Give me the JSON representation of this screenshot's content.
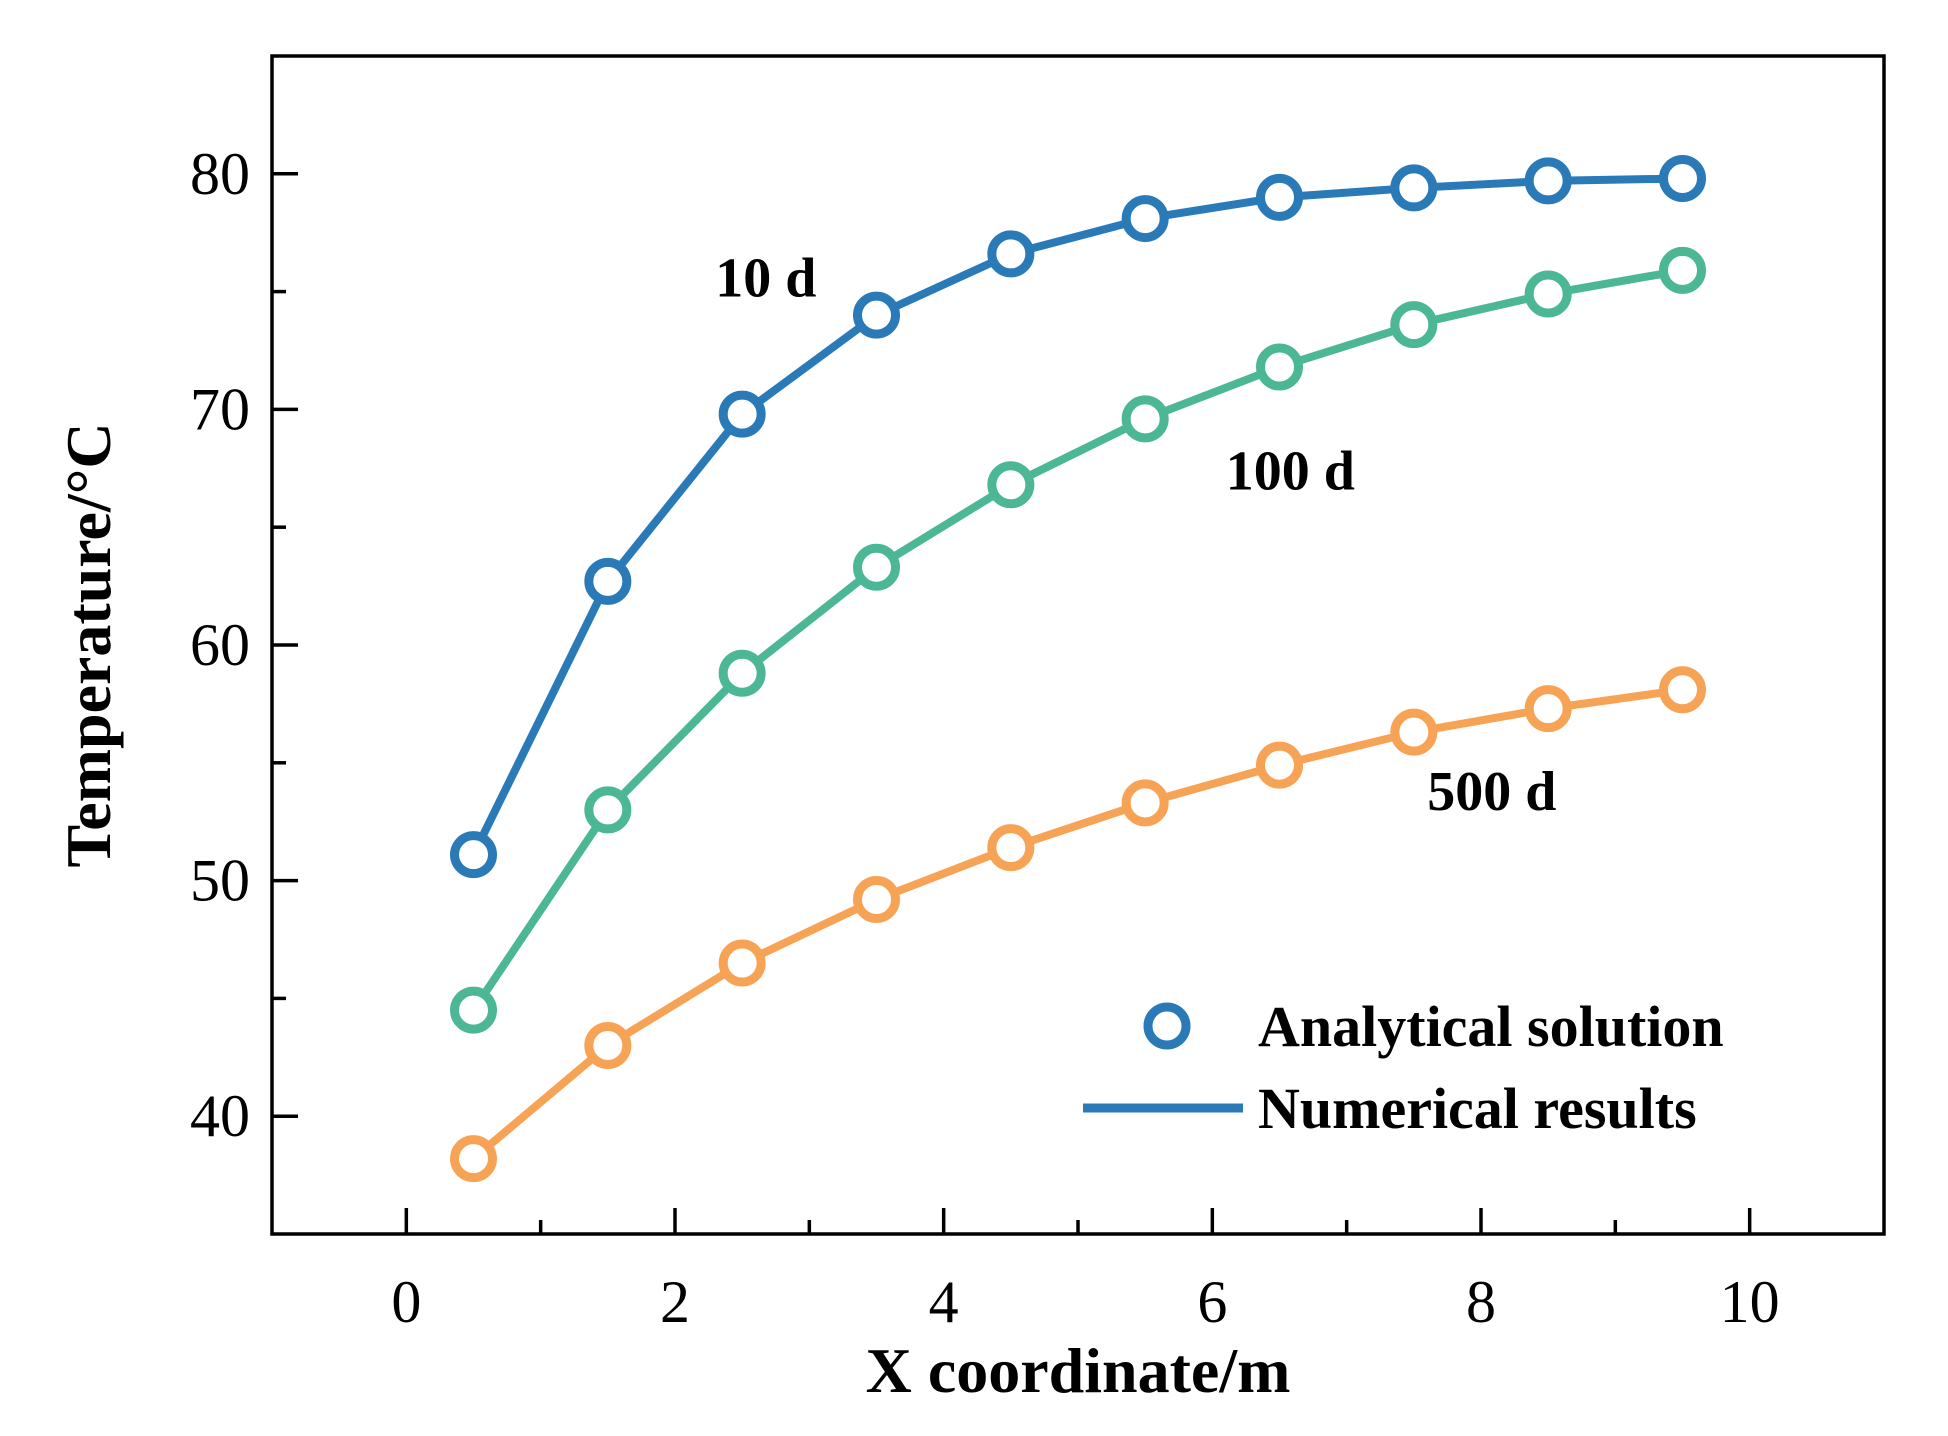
{
  "chart_data": {
    "type": "line",
    "title": "",
    "xlabel": "X coordinate/m",
    "ylabel": "Temperature/°C",
    "xlim": [
      -1,
      11
    ],
    "ylim": [
      35,
      85
    ],
    "x_ticks": [
      0,
      2,
      4,
      6,
      8,
      10
    ],
    "x_tick_labels": [
      "0",
      "2",
      "4",
      "6",
      "8",
      "10"
    ],
    "x_minor_ticks": [
      1,
      3,
      5,
      7,
      9
    ],
    "y_ticks": [
      40,
      50,
      60,
      70,
      80
    ],
    "y_tick_labels": [
      "40",
      "50",
      "60",
      "70",
      "80"
    ],
    "y_minor_ticks": [
      45,
      55,
      65,
      75
    ],
    "grid": false,
    "x": [
      0.5,
      1.5,
      2.5,
      3.5,
      4.5,
      5.5,
      6.5,
      7.5,
      8.5,
      9.5
    ],
    "series": [
      {
        "name": "10 d",
        "color": "#2a7ab8",
        "values": [
          51.1,
          62.7,
          69.8,
          74.0,
          76.6,
          78.1,
          79.0,
          79.4,
          79.7,
          79.8
        ]
      },
      {
        "name": "100 d",
        "color": "#4cb795",
        "values": [
          44.5,
          53.0,
          58.8,
          63.3,
          66.8,
          69.6,
          71.8,
          73.6,
          74.9,
          75.9
        ]
      },
      {
        "name": "500 d",
        "color": "#f7a355",
        "values": [
          38.2,
          43.0,
          46.5,
          49.2,
          51.4,
          53.3,
          54.9,
          56.3,
          57.3,
          58.1
        ]
      }
    ],
    "annotations": [
      {
        "text": "10 d",
        "x": 2.3,
        "y": 74.8
      },
      {
        "text": "100 d",
        "x": 6.1,
        "y": 66.6
      },
      {
        "text": "500 d",
        "x": 7.6,
        "y": 53.0
      }
    ],
    "legend": {
      "position": "bottom-right",
      "entries": [
        {
          "label": "Analytical solution",
          "marker": "circle",
          "color": "#2a7ab8"
        },
        {
          "label": "Numerical results",
          "marker": "line",
          "color": "#2a7ab8"
        }
      ]
    }
  }
}
